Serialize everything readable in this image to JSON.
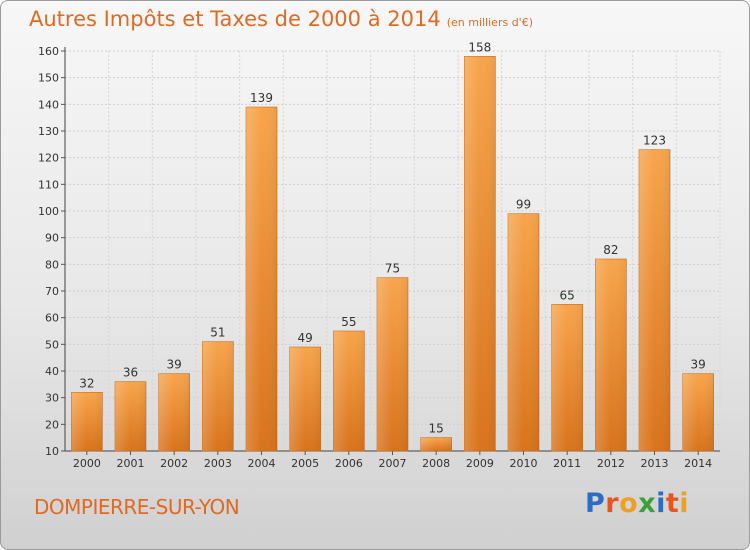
{
  "header": {
    "title": "Autres Impôts et Taxes de 2000 à 2014",
    "unit": "(en milliers d'€)"
  },
  "footer": {
    "city": "DOMPIERRE-SUR-YON",
    "logo": "Proxiti"
  },
  "colors": {
    "accent": "#e06a22",
    "bar_light": "#f6a24a",
    "bar_dark": "#d9761f",
    "logo_letters": [
      "#2b6cc4",
      "#e8541c",
      "#f0a020",
      "#3aa13a",
      "#2b6cc4",
      "#e8541c",
      "#f0a020"
    ]
  },
  "chart_data": {
    "type": "bar",
    "title": "Autres Impôts et Taxes de 2000 à 2014",
    "subtitle": "(en milliers d'€)",
    "xlabel": "",
    "ylabel": "",
    "categories": [
      "2000",
      "2001",
      "2002",
      "2003",
      "2004",
      "2005",
      "2006",
      "2007",
      "2008",
      "2009",
      "2010",
      "2011",
      "2012",
      "2013",
      "2014"
    ],
    "values": [
      32,
      36,
      39,
      51,
      139,
      49,
      55,
      75,
      15,
      158,
      99,
      65,
      82,
      123,
      39
    ],
    "ylim": [
      10,
      160
    ],
    "yticks": [
      10,
      20,
      30,
      40,
      50,
      60,
      70,
      80,
      90,
      100,
      110,
      120,
      130,
      140,
      150,
      160
    ],
    "grid": true
  }
}
